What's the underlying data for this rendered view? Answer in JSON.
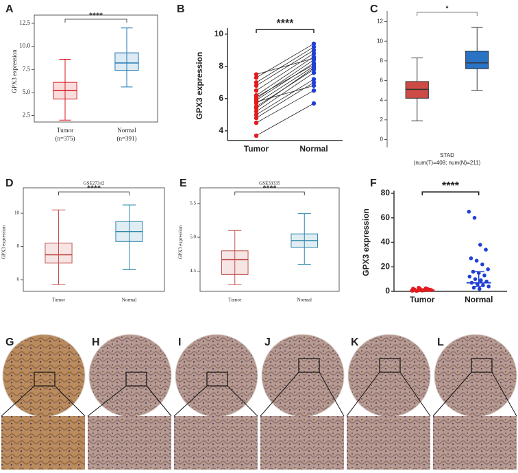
{
  "chart_data": [
    {
      "type": "box",
      "panel": "A",
      "ylabel": "GPX3 expression",
      "sig": "****",
      "frame": true,
      "filled": false,
      "ylim": [
        1.8,
        12.8
      ],
      "yticks": [
        2.5,
        {
          "value": 5,
          "label": "5.0"
        },
        7.5,
        {
          "value": 10,
          "label": "10.0"
        },
        12.5
      ],
      "n_labels": [
        "(n=375)",
        "(n=391)"
      ],
      "series": [
        {
          "name": "Tumor",
          "color": "#d7191c",
          "min": 2.0,
          "q1": 4.3,
          "median": 5.2,
          "q3": 6.1,
          "max": 8.6
        },
        {
          "name": "Normal",
          "color": "#1f78b4",
          "min": 5.6,
          "q1": 7.4,
          "median": 8.2,
          "q3": 9.3,
          "max": 12.0
        }
      ]
    },
    {
      "type": "paired",
      "panel": "B",
      "ylabel": "GPX3 expression",
      "sig": "****",
      "frame": false,
      "ylim": [
        3.4,
        10.2
      ],
      "yticks": [
        4,
        6,
        8,
        10
      ],
      "series": [
        {
          "name": "Tumor",
          "color": "#e41a1c",
          "values": [
            3.7,
            4.5,
            5.0,
            5.2,
            5.5,
            5.7,
            5.9,
            6.0,
            6.2,
            6.5,
            6.8,
            7.0,
            7.3,
            7.5,
            4.8,
            5.4,
            6.1,
            5.8
          ]
        },
        {
          "name": "Normal",
          "color": "#1f3fd6",
          "values": [
            5.7,
            6.5,
            7.2,
            7.6,
            7.8,
            8.0,
            8.2,
            8.4,
            8.6,
            8.8,
            9.0,
            9.2,
            9.4,
            8.5,
            7.0,
            7.9,
            8.1,
            6.8
          ]
        }
      ]
    },
    {
      "type": "box",
      "panel": "C",
      "sig": "*",
      "sig_color": "#e3342f",
      "frame": false,
      "filled": true,
      "xlabel": "STAD",
      "xnote": "(num(T)=408; num(N)=211)",
      "ylim": [
        -0.8,
        12.8
      ],
      "yticks": [
        0,
        2,
        4,
        6,
        8,
        10,
        12
      ],
      "series": [
        {
          "color": "#cc4c45",
          "min": 1.9,
          "q1": 4.2,
          "median": 5.1,
          "q3": 5.9,
          "max": 8.3
        },
        {
          "color": "#2a73c4",
          "min": 5.0,
          "q1": 7.2,
          "median": 7.8,
          "q3": 9.0,
          "max": 11.4
        }
      ]
    },
    {
      "type": "box",
      "panel": "D",
      "title": "GSE27342",
      "ylabel": "GPX3 expression",
      "sig": "****",
      "frame": true,
      "filled": false,
      "ylim": [
        5.3,
        11.2
      ],
      "yticks": [
        6,
        8,
        10
      ],
      "series": [
        {
          "name": "Tumor",
          "color": "#c0504d",
          "min": 5.7,
          "q1": 7.0,
          "median": 7.5,
          "q3": 8.2,
          "max": 10.2
        },
        {
          "name": "Normal",
          "color": "#2e86ab",
          "min": 6.6,
          "q1": 8.3,
          "median": 8.9,
          "q3": 9.5,
          "max": 10.5
        }
      ]
    },
    {
      "type": "box",
      "panel": "E",
      "title": "GSE33335",
      "ylabel": "GPX3 expression",
      "sig": "****",
      "frame": true,
      "filled": false,
      "ylim": [
        4.2,
        5.65
      ],
      "yticks": [
        4.5,
        {
          "value": 5,
          "label": "5.0"
        },
        5.5
      ],
      "series": [
        {
          "name": "Tumor",
          "color": "#c0504d",
          "min": 4.3,
          "q1": 4.45,
          "median": 4.67,
          "q3": 4.8,
          "max": 5.1
        },
        {
          "name": "Normal",
          "color": "#2e86ab",
          "min": 4.6,
          "q1": 4.85,
          "median": 4.95,
          "q3": 5.05,
          "max": 5.35
        }
      ]
    },
    {
      "type": "dot",
      "panel": "F",
      "ylabel": "GPX3 expression",
      "sig": "****",
      "frame": false,
      "ylim": [
        0,
        80
      ],
      "yticks": [
        0,
        20,
        40,
        60,
        80
      ],
      "series": [
        {
          "name": "Tumor",
          "color": "#e41a1c",
          "median": 1,
          "error_low": 0.5,
          "error_high": 2,
          "values": [
            0.5,
            0.8,
            1,
            1.2,
            1.5,
            2,
            2.5,
            1,
            0.3,
            0.6,
            1.8,
            2.2,
            3,
            0.9,
            1.4
          ]
        },
        {
          "name": "Normal",
          "color": "#1f3fd6",
          "median": 7,
          "error_low": 4,
          "error_high": 16,
          "values": [
            65,
            60,
            38,
            34,
            27,
            25,
            22,
            18,
            16,
            15,
            13,
            12,
            10,
            9,
            8,
            7,
            6,
            5,
            4,
            3,
            2
          ]
        }
      ]
    }
  ],
  "tissue_panels": {
    "labels": [
      "G",
      "H",
      "I",
      "J",
      "K",
      "L"
    ]
  }
}
